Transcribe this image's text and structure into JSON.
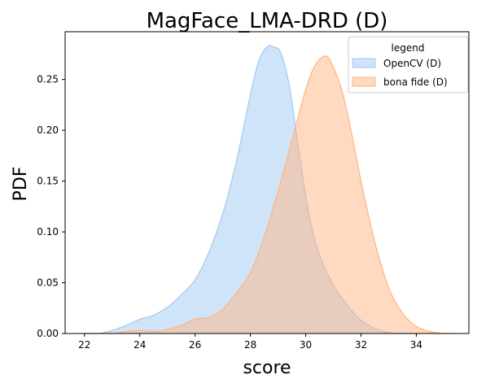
{
  "chart_data": {
    "type": "area",
    "title": "MagFace_LMA-DRD (D)",
    "xlabel": "score",
    "ylabel": "PDF",
    "xlim": [
      21.3,
      35.9
    ],
    "ylim": [
      0,
      0.297
    ],
    "xticks": [
      22,
      24,
      26,
      28,
      30,
      32,
      34
    ],
    "yticks": [
      0.0,
      0.05,
      0.1,
      0.15,
      0.2,
      0.25
    ],
    "ytick_labels": [
      "0.00",
      "0.05",
      "0.10",
      "0.15",
      "0.20",
      "0.25"
    ],
    "grid": false,
    "legend": {
      "title": "legend",
      "placement": "upper right"
    },
    "series": [
      {
        "name": "OpenCV (D)",
        "fill_color": "#a1c9f4",
        "line_color": "#a1c9f4",
        "x": [
          22.0,
          22.5,
          23.0,
          23.5,
          24.0,
          24.5,
          25.0,
          25.5,
          26.0,
          26.5,
          27.0,
          27.5,
          28.0,
          28.3,
          28.6,
          28.85,
          29.1,
          29.4,
          29.7,
          30.0,
          30.3,
          30.6,
          31.0,
          31.5,
          32.0,
          32.5,
          33.0,
          33.5,
          34.0
        ],
        "y": [
          0.0,
          0.0,
          0.003,
          0.008,
          0.014,
          0.018,
          0.026,
          0.038,
          0.053,
          0.08,
          0.118,
          0.17,
          0.235,
          0.268,
          0.282,
          0.282,
          0.276,
          0.245,
          0.19,
          0.135,
          0.095,
          0.07,
          0.048,
          0.028,
          0.013,
          0.005,
          0.001,
          0.0,
          0.0
        ]
      },
      {
        "name": "bona fide (D)",
        "fill_color": "#ffb482",
        "line_color": "#ffb482",
        "x": [
          22.0,
          22.5,
          23.0,
          23.5,
          24.0,
          24.5,
          25.0,
          25.5,
          26.0,
          26.5,
          27.0,
          27.5,
          28.0,
          28.5,
          29.0,
          29.5,
          30.0,
          30.3,
          30.6,
          30.8,
          31.0,
          31.3,
          31.6,
          32.0,
          32.5,
          33.0,
          33.5,
          34.0,
          34.5,
          35.0,
          35.3
        ],
        "y": [
          0.0,
          0.0,
          0.0,
          0.002,
          0.003,
          0.002,
          0.004,
          0.008,
          0.014,
          0.016,
          0.024,
          0.04,
          0.06,
          0.095,
          0.14,
          0.19,
          0.24,
          0.262,
          0.272,
          0.272,
          0.262,
          0.24,
          0.205,
          0.15,
          0.09,
          0.045,
          0.02,
          0.007,
          0.002,
          0.0,
          0.0
        ]
      }
    ]
  }
}
